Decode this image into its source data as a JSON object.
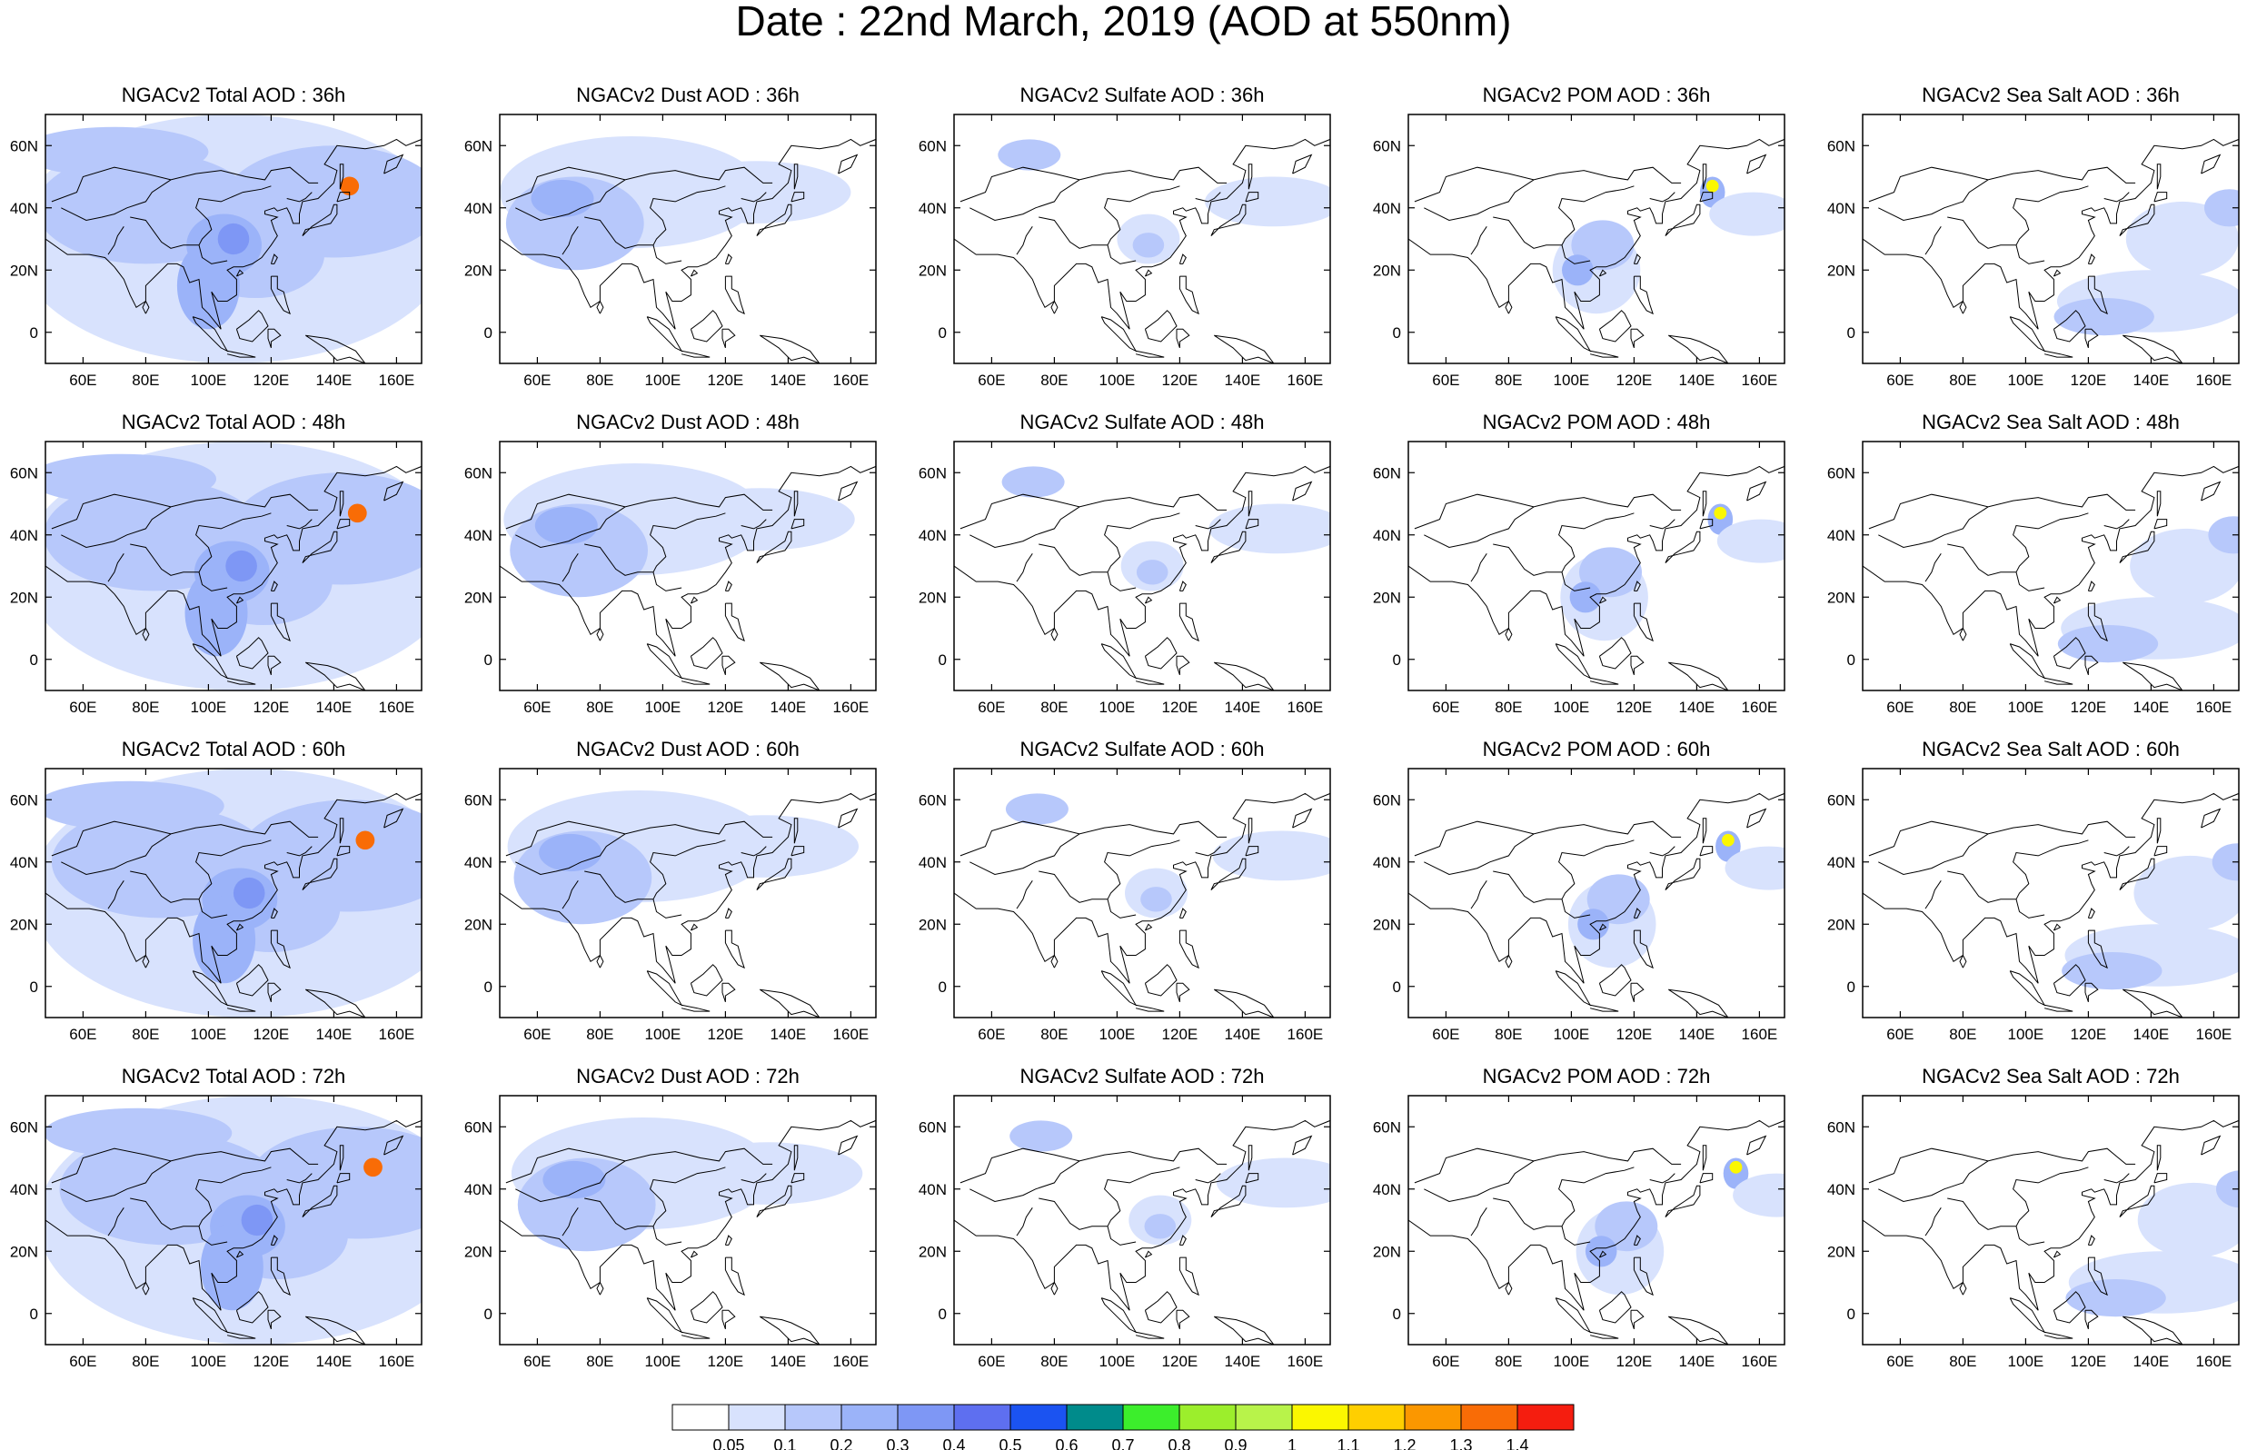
{
  "title": "Date : 22nd March, 2019 (AOD at 550nm)",
  "panel_titles": [
    [
      "NGACv2 Total AOD : 36h",
      "NGACv2 Dust AOD : 36h",
      "NGACv2 Sulfate AOD : 36h",
      "NGACv2 POM AOD : 36h",
      "NGACv2 Sea Salt AOD : 36h"
    ],
    [
      "NGACv2 Total AOD : 48h",
      "NGACv2 Dust AOD : 48h",
      "NGACv2 Sulfate AOD : 48h",
      "NGACv2 POM AOD : 48h",
      "NGACv2 Sea Salt AOD : 48h"
    ],
    [
      "NGACv2 Total AOD : 60h",
      "NGACv2 Dust AOD : 60h",
      "NGACv2 Sulfate AOD : 60h",
      "NGACv2 POM AOD : 60h",
      "NGACv2 Sea Salt AOD : 60h"
    ],
    [
      "NGACv2 Total AOD : 72h",
      "NGACv2 Dust AOD : 72h",
      "NGACv2 Sulfate AOD : 72h",
      "NGACv2 POM AOD : 72h",
      "NGACv2 Sea Salt  AOD : 72h"
    ]
  ],
  "lon_ticks": [
    "60E",
    "80E",
    "100E",
    "120E",
    "140E",
    "160E"
  ],
  "lat_ticks": [
    "60N",
    "40N",
    "20N",
    "0"
  ],
  "map_extent": {
    "lon_min": 48,
    "lon_max": 168,
    "lat_min": -10,
    "lat_max": 70
  },
  "colorbar": {
    "labels": [
      "0.05",
      "0.1",
      "0.2",
      "0.3",
      "0.4",
      "0.5",
      "0.6",
      "0.7",
      "0.8",
      "0.9",
      "1",
      "1.1",
      "1.2",
      "1.3",
      "1.4"
    ],
    "colors": [
      "#ffffff",
      "#d8e2fd",
      "#b7c8fb",
      "#9bb3f9",
      "#7e97f5",
      "#5e6ff0",
      "#1b53f1",
      "#008b8b",
      "#3cee2c",
      "#9cee2c",
      "#b8f34a",
      "#fbf700",
      "#ffcf00",
      "#fb9700",
      "#f96c06",
      "#f51d0f"
    ]
  }
}
